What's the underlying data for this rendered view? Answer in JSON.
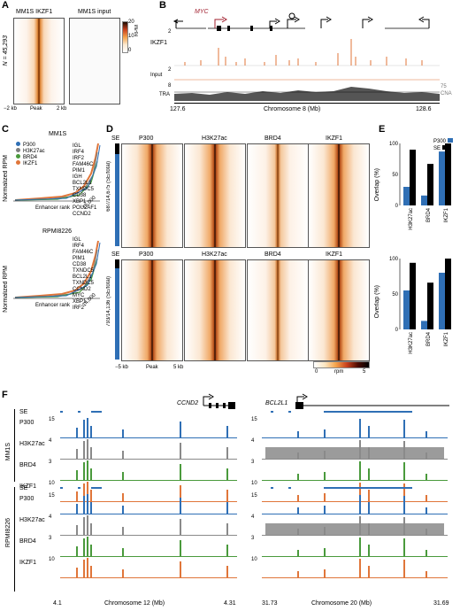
{
  "panels": {
    "A": "A",
    "B": "B",
    "C": "C",
    "D": "D",
    "E": "E",
    "F": "F"
  },
  "panelA": {
    "title_left": "MM1S IKZF1",
    "title_right": "MM1S input",
    "n_label": "N = 45,293",
    "x_ticks": [
      "−2 kb",
      "Peak",
      "2 kb"
    ],
    "cbar_label": "RPM",
    "cbar_ticks": [
      "20",
      "10",
      "0"
    ]
  },
  "panelB": {
    "gene": "MYC",
    "tracks": [
      {
        "name": "IKZF1",
        "max": "2"
      },
      {
        "name": "Input",
        "max": "2"
      },
      {
        "name": "TRA",
        "max": "8"
      }
    ],
    "cna_label": "75\nCNA",
    "cna_line1": "75",
    "cna_line2": "CNA",
    "x_left": "127.6",
    "x_right": "128.6",
    "xlabel": "Chromosome 8 (Mb)"
  },
  "panelC": {
    "top": {
      "cell": "MM1S",
      "genes": [
        "IGL",
        "IRF4",
        "IRF2",
        "FAM46C",
        "PIM1",
        "IGH",
        "BCL2L1",
        "TXNDC5",
        "CD38",
        "XBP1",
        "POU2AF1",
        "CCND2"
      ],
      "xend": "15,000"
    },
    "bottom": {
      "cell": "RPMI8226",
      "genes": [
        "IGL",
        "IRF4",
        "FAM46C",
        "PIM1",
        "CD38",
        "TXNDC5",
        "BCL2L1",
        "TXNDC5",
        "CCND2",
        "MYC",
        "XBP1",
        "IRF2"
      ],
      "xend": "14,000"
    },
    "legend": [
      {
        "name": "P300",
        "color": "#2f6fb5"
      },
      {
        "name": "H3K27ac",
        "color": "#7f7f7f"
      },
      {
        "name": "BRD4",
        "color": "#4a9a3c"
      },
      {
        "name": "IKZF1",
        "color": "#e0763a"
      }
    ],
    "ylabel": "Normalized RPM",
    "xlabel": "Enhancer rank"
  },
  "panelD": {
    "cols": [
      "P300",
      "H3K27ac",
      "BRD4",
      "IKZF1"
    ],
    "se_label": "SE",
    "top_side": "687/14,675 (SE/total)",
    "bottom_side": "793/14,136 (SE/total)",
    "x_ticks": [
      "−5 kb",
      "Peak",
      "5 kb"
    ],
    "cbar_ticks": [
      "0",
      "rpm",
      "5"
    ]
  },
  "panelE": {
    "legend": [
      {
        "name": "P300",
        "color": "#2f6fb5"
      },
      {
        "name": "SE",
        "color": "#000000"
      }
    ],
    "ylabel": "Overlap (%)",
    "y_ticks": [
      "100",
      "50",
      "0"
    ],
    "categories": [
      "H3K27ac",
      "BRD4",
      "IKZF1"
    ],
    "chart_data": [
      {
        "type": "bar",
        "panel": "MM1S",
        "categories": [
          "H3K27ac",
          "BRD4",
          "IKZF1"
        ],
        "series": [
          {
            "name": "P300",
            "values": [
              30,
              16,
              87
            ]
          },
          {
            "name": "SE",
            "values": [
              90,
              67,
              100
            ]
          }
        ],
        "ylim": [
          0,
          100
        ]
      },
      {
        "type": "bar",
        "panel": "RPMI8226",
        "categories": [
          "H3K27ac",
          "BRD4",
          "IKZF1"
        ],
        "series": [
          {
            "name": "P300",
            "values": [
              55,
              12,
              80
            ]
          },
          {
            "name": "SE",
            "values": [
              94,
              66,
              100
            ]
          }
        ],
        "ylim": [
          0,
          100
        ]
      }
    ]
  },
  "panelF": {
    "groups": [
      "MM1S",
      "RPMI8226"
    ],
    "left_gene": "CCND2",
    "right_gene": "BCL2L1",
    "tracks": [
      {
        "name": "SE"
      },
      {
        "name": "P300",
        "left": "15",
        "right": "15"
      },
      {
        "name": "H3K27ac",
        "left": "4",
        "right": "4"
      },
      {
        "name": "BRD4",
        "left": "3",
        "right": "3"
      },
      {
        "name": "IKZF1",
        "left": "10",
        "right": "10"
      }
    ],
    "left_axis": {
      "start": "4.1",
      "end": "4.31",
      "label": "Chromosome 12 (Mb)"
    },
    "right_axis": {
      "start": "31.73",
      "end": "31.69",
      "label": "Chromosome 20 (Mb)"
    }
  }
}
